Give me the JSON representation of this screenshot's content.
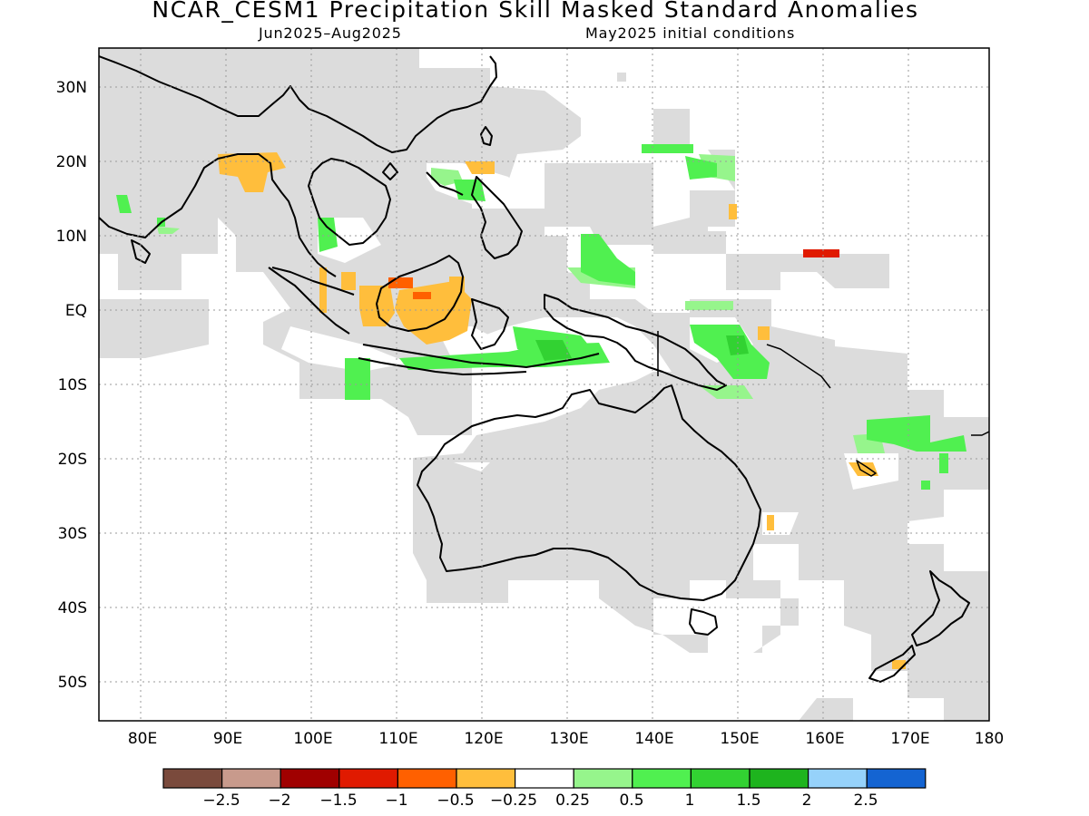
{
  "title": "NCAR_CESM1 Precipitation Skill Masked Standard Anomalies",
  "subtitle_left": "Jun2025–Aug2025",
  "subtitle_right": "May2025 initial conditions",
  "lat_labels": [
    "30N",
    "20N",
    "10N",
    "EQ",
    "10S",
    "20S",
    "30S",
    "40S",
    "50S"
  ],
  "lon_labels": [
    "80E",
    "90E",
    "100E",
    "110E",
    "120E",
    "130E",
    "140E",
    "150E",
    "160E",
    "170E",
    "180"
  ],
  "colorbar": {
    "colors": [
      "#7a4a3c",
      "#c89a8c",
      "#a00000",
      "#e01a00",
      "#ff6000",
      "#ffbe3c",
      "#ffffff",
      "#96f58c",
      "#50f050",
      "#32d232",
      "#1eb41e",
      "#96d2fa",
      "#1464d2"
    ],
    "labels": [
      "−2.5",
      "−2",
      "−1.5",
      "−1",
      "−0.5",
      "−0.25",
      "0.25",
      "0.5",
      "1",
      "1.5",
      "2",
      "2.5"
    ]
  },
  "legend_colors": {
    "masked": "#dcdcdc",
    "coast": "#000000"
  }
}
